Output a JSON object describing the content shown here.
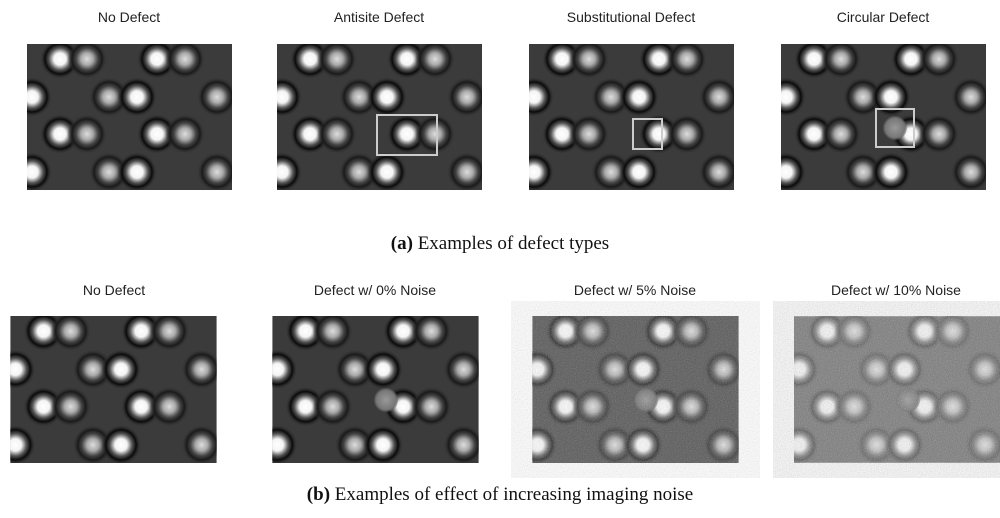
{
  "panels": [
    {
      "caption_label": "(a)",
      "caption": "Examples of defect types",
      "images": [
        {
          "title": "No Defect"
        },
        {
          "title": "Antisite Defect"
        },
        {
          "title": "Substitutional Defect"
        },
        {
          "title": "Circular Defect"
        }
      ]
    },
    {
      "caption_label": "(b)",
      "caption": "Examples of effect of increasing imaging noise",
      "images": [
        {
          "title": "No Defect"
        },
        {
          "title": "Defect w/ 0% Noise"
        },
        {
          "title": "Defect w/ 5% Noise"
        },
        {
          "title": "Defect w/ 10% Noise"
        }
      ]
    }
  ]
}
